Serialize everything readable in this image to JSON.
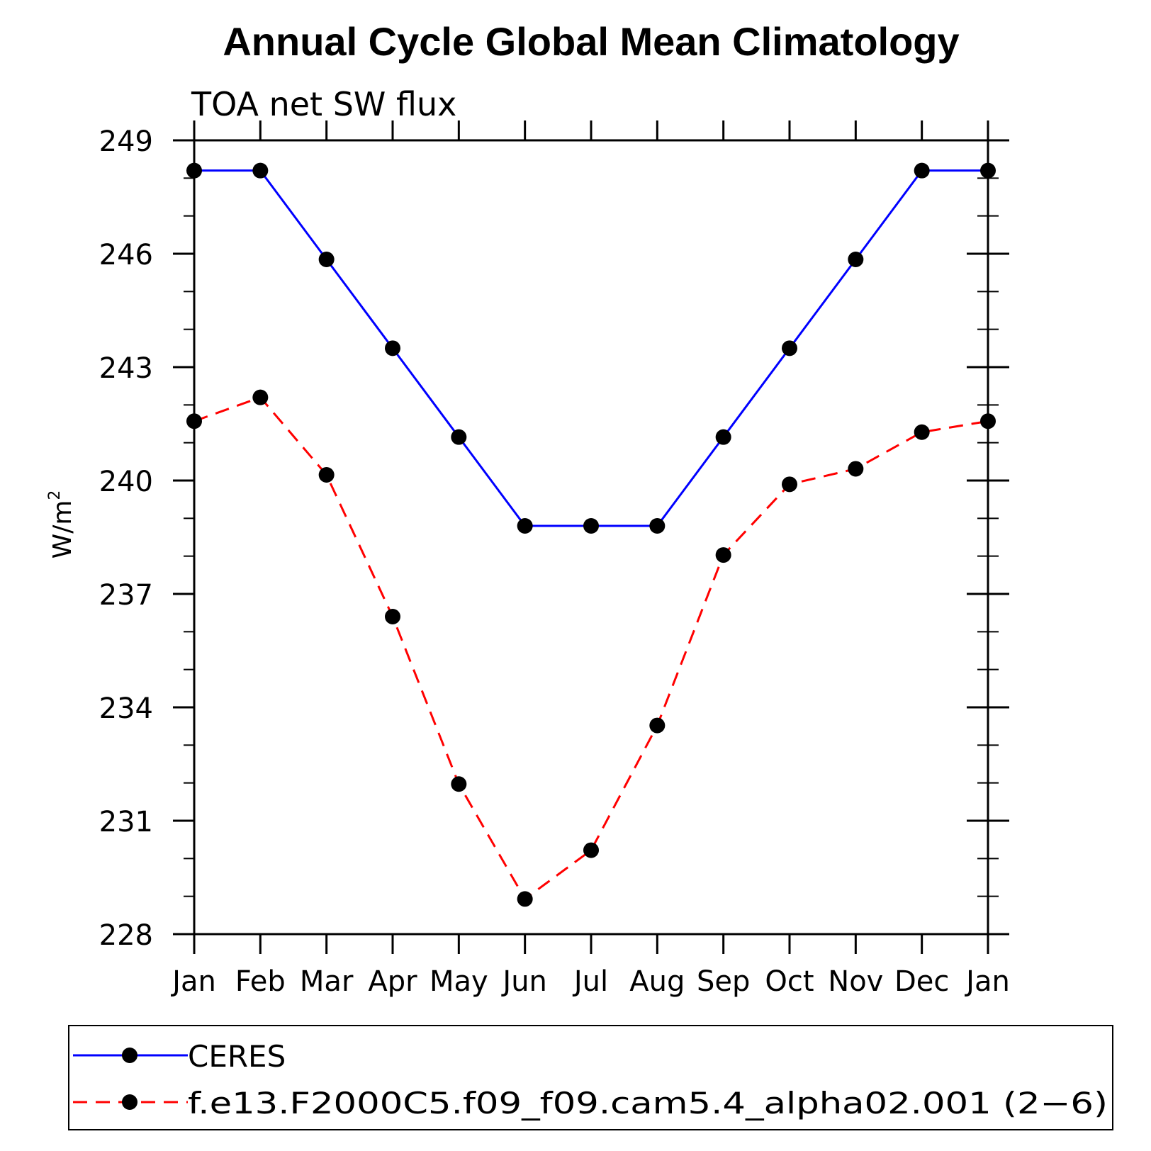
{
  "chart_data": {
    "type": "line",
    "title": "Annual Cycle Global Mean Climatology",
    "subtitle": "TOA net SW flux",
    "xlabel": "",
    "ylabel": "W/m",
    "ylabel_superscript": "2",
    "categories": [
      "Jan",
      "Feb",
      "Mar",
      "Apr",
      "May",
      "Jun",
      "Jul",
      "Aug",
      "Sep",
      "Oct",
      "Nov",
      "Dec",
      "Jan"
    ],
    "ylim": [
      228,
      249
    ],
    "yticks": [
      "249",
      "246",
      "243",
      "240",
      "237",
      "234",
      "231",
      "228"
    ],
    "ytick_values": [
      249,
      246,
      243,
      240,
      237,
      234,
      231,
      228
    ],
    "series": [
      {
        "name": "CERES",
        "color": "#0000ff",
        "dash": "solid",
        "values": [
          248.2,
          248.2,
          245.85,
          243.5,
          241.15,
          238.8,
          238.8,
          238.8,
          241.15,
          243.5,
          245.85,
          248.2,
          248.2
        ]
      },
      {
        "name": "f.e13.F2000C5.f09_f09.cam5.4_alpha02.001 (2−6)",
        "color": "#ff0000",
        "dash": "dashed",
        "values": [
          241.57,
          242.2,
          240.15,
          236.4,
          231.97,
          228.93,
          230.22,
          233.52,
          238.03,
          239.9,
          240.31,
          241.28,
          241.57
        ]
      }
    ]
  }
}
